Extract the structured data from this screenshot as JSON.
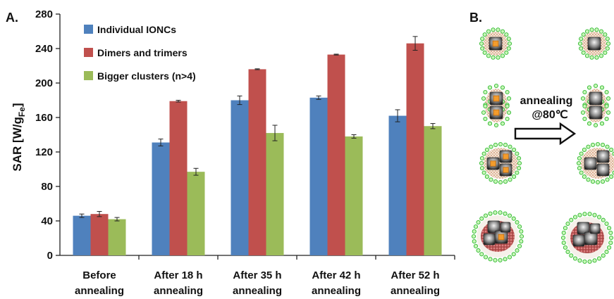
{
  "panels": {
    "a": "A.",
    "b": "B."
  },
  "chart_data": {
    "type": "bar",
    "ylabel_main": "SAR [W/g",
    "ylabel_sub": "Fe",
    "ylabel_close": "]",
    "ylim": [
      0,
      280
    ],
    "yticks": [
      "0",
      "40",
      "80",
      "120",
      "160",
      "200",
      "240",
      "280"
    ],
    "categories": [
      [
        "Before",
        "annealing"
      ],
      [
        "After 18 h",
        "annealing"
      ],
      [
        "After 35 h",
        "annealing"
      ],
      [
        "After 42 h",
        "annealing"
      ],
      [
        "After 52 h",
        "annealing"
      ]
    ],
    "series": [
      {
        "name": "Individual IONCs",
        "color": "#4f81bd",
        "values": [
          46,
          131,
          180,
          183,
          162
        ],
        "errors": [
          2,
          4,
          5,
          2,
          7
        ]
      },
      {
        "name": "Dimers and trimers",
        "color": "#c0504d",
        "values": [
          48,
          179,
          216,
          233,
          246
        ],
        "errors": [
          3,
          1,
          0.5,
          0.5,
          8
        ]
      },
      {
        "name": "Bigger clusters (n>4)",
        "color": "#9bbb59",
        "values": [
          42,
          97,
          142,
          138,
          150
        ],
        "errors": [
          2,
          4,
          9,
          2,
          3
        ]
      }
    ],
    "legend_position": "top-left",
    "grid": false
  },
  "schematic": {
    "annotation_line1": "annealing",
    "annotation_line2": "@80℃",
    "arrow_icon": "right-arrow-icon",
    "left_column": [
      "single-nanocube-icon",
      "dimer-nanocube-icon",
      "trimer-nanocube-icon",
      "cluster-nanocube-icon"
    ],
    "right_column": [
      "single-nanocube-annealed-icon",
      "dimer-nanocube-annealed-icon",
      "trimer-nanocube-annealed-icon",
      "cluster-nanocube-annealed-icon"
    ]
  }
}
